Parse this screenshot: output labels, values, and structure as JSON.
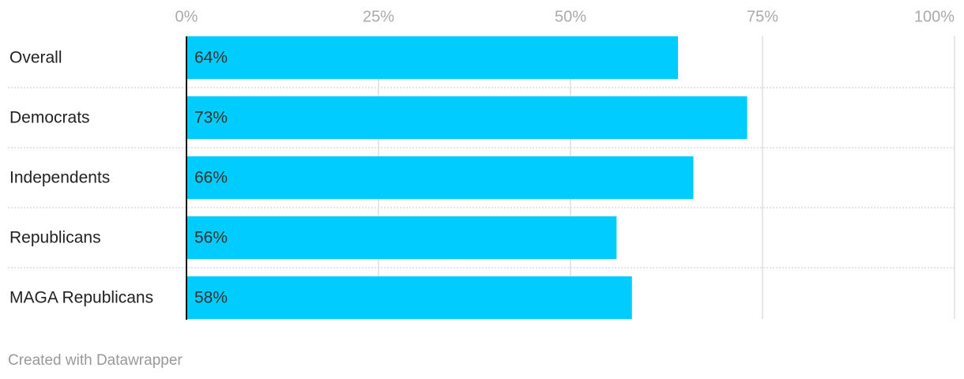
{
  "chart_data": {
    "type": "bar",
    "orientation": "horizontal",
    "categories": [
      "Overall",
      "Democrats",
      "Independents",
      "Republicans",
      "MAGA Republicans"
    ],
    "values": [
      64,
      73,
      66,
      56,
      58
    ],
    "value_labels": [
      "64%",
      "73%",
      "66%",
      "56%",
      "58%"
    ],
    "color": "#00ccff",
    "xlim": [
      0,
      100
    ],
    "xticks": [
      {
        "value": 0,
        "label": "0%"
      },
      {
        "value": 25,
        "label": "25%"
      },
      {
        "value": 50,
        "label": "50%"
      },
      {
        "value": 75,
        "label": "75%"
      },
      {
        "value": 100,
        "label": "100%"
      }
    ],
    "grid": true,
    "credit": "Created with Datawrapper"
  }
}
